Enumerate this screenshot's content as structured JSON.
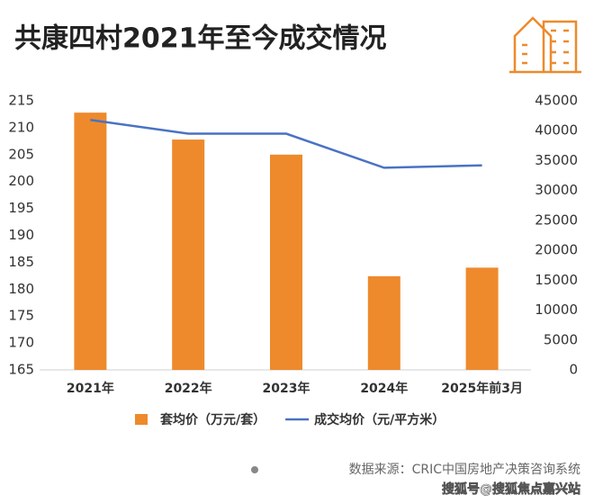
{
  "chart_data": {
    "type": "bar",
    "title": "共康四村2021年至今成交情况",
    "categories": [
      "2021年",
      "2022年",
      "2023年",
      "2024年",
      "2025年前3月"
    ],
    "series": [
      {
        "name": "套均价（万元/套）",
        "type": "bar",
        "color": "#ee8a2c",
        "values": [
          212.8,
          207.8,
          205,
          182.4,
          184
        ]
      },
      {
        "name": "成交均价（元/平方米）",
        "type": "line",
        "axis": "y2",
        "color": "#4a72c4",
        "values": [
          41800,
          39500,
          39500,
          33800,
          34200
        ]
      }
    ],
    "ylim": [
      165,
      215
    ],
    "yticks": [
      165,
      170,
      175,
      180,
      185,
      190,
      195,
      200,
      205,
      210,
      215
    ],
    "y2lim": [
      0,
      45000
    ],
    "y2ticks": [
      0,
      5000,
      10000,
      15000,
      20000,
      25000,
      30000,
      35000,
      40000,
      45000
    ],
    "grid": false,
    "legend": "bottom"
  },
  "footer": {
    "source": "数据来源：CRIC中国房地产决策咨询系统",
    "watermark": "搜狐号@搜狐焦点嘉兴站"
  }
}
